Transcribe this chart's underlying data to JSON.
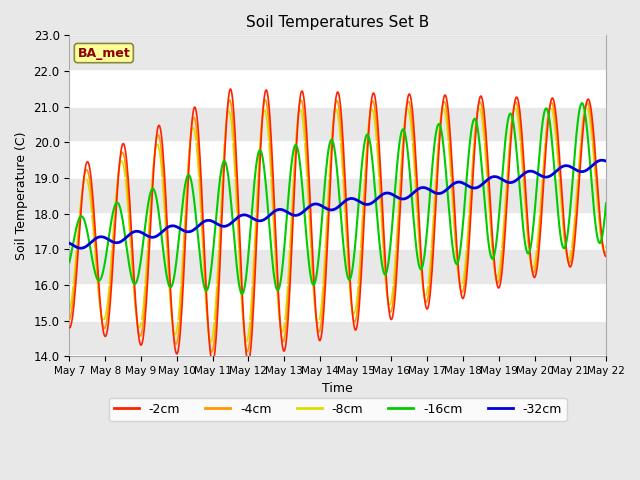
{
  "title": "Soil Temperatures Set B",
  "xlabel": "Time",
  "ylabel": "Soil Temperature (C)",
  "ylim": [
    14.0,
    23.0
  ],
  "yticks": [
    14.0,
    15.0,
    16.0,
    17.0,
    18.0,
    19.0,
    20.0,
    21.0,
    22.0,
    23.0
  ],
  "annotation_text": "BA_met",
  "annotation_color": "#8B0000",
  "annotation_bg": "#FFFF99",
  "fig_bg": "#E8E8E8",
  "plot_bg": "#E8E8E8",
  "series_colors": {
    "-2cm": "#FF2200",
    "-4cm": "#FF9900",
    "-8cm": "#DDDD00",
    "-16cm": "#00CC00",
    "-32cm": "#0000DD"
  },
  "legend_order": [
    "-2cm",
    "-4cm",
    "-8cm",
    "-16cm",
    "-32cm"
  ],
  "num_points": 720,
  "num_days": 16
}
